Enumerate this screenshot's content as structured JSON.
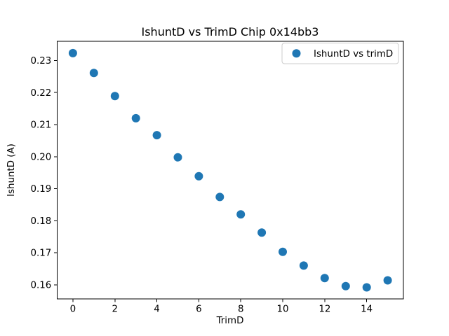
{
  "figure": {
    "background": "#ffffff",
    "text_color": "#000000",
    "legend_border_color": "#cccccc"
  },
  "chart_data": {
    "type": "scatter",
    "title": "IshuntD vs TrimD Chip 0x14bb3",
    "xlabel": "TrimD",
    "ylabel": "IshuntD (A)",
    "legend": {
      "label": "IshuntD vs trimD",
      "position": "upper right",
      "marker": "dot-icon"
    },
    "marker_color": "#1f77b4",
    "grid": false,
    "x": [
      0,
      1,
      2,
      3,
      4,
      5,
      6,
      7,
      8,
      9,
      10,
      11,
      12,
      13,
      14,
      15
    ],
    "y": [
      0.2323,
      0.2261,
      0.2189,
      0.212,
      0.2067,
      0.1998,
      0.1939,
      0.1874,
      0.182,
      0.1763,
      0.1703,
      0.166,
      0.1621,
      0.1596,
      0.1592,
      0.1614
    ],
    "xlim": [
      -0.75,
      15.75
    ],
    "ylim": [
      0.1556,
      0.236
    ],
    "xticks": {
      "values": [
        0,
        2,
        4,
        6,
        8,
        10,
        12,
        14
      ],
      "labels": [
        "0",
        "2",
        "4",
        "6",
        "8",
        "10",
        "12",
        "14"
      ]
    },
    "yticks": {
      "values": [
        0.16,
        0.17,
        0.18,
        0.19,
        0.2,
        0.21,
        0.22,
        0.23
      ],
      "labels": [
        "0.16",
        "0.17",
        "0.18",
        "0.19",
        "0.20",
        "0.21",
        "0.22",
        "0.23"
      ]
    }
  }
}
